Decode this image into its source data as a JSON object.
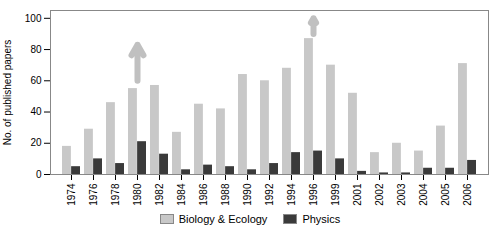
{
  "chart_data": {
    "type": "bar",
    "categories": [
      "1974",
      "1976",
      "1978",
      "1980",
      "1982",
      "1984",
      "1986",
      "1988",
      "1990",
      "1992",
      "1994",
      "1996",
      "1999",
      "2001",
      "2002",
      "2003",
      "2004",
      "2005",
      "2006"
    ],
    "series": [
      {
        "name": "Biology & Ecology",
        "color": "#C8C8C8",
        "values": [
          18,
          29,
          46,
          55,
          57,
          27,
          45,
          42,
          64,
          60,
          68,
          87,
          70,
          52,
          14,
          20,
          15,
          31,
          71
        ]
      },
      {
        "name": "Physics",
        "color": "#3A3A3A",
        "values": [
          5,
          10,
          7,
          21,
          13,
          3,
          6,
          5,
          3,
          7,
          14,
          15,
          10,
          2,
          1,
          1,
          4,
          4,
          9
        ]
      }
    ],
    "ylabel": "No. of published papers",
    "ylim": [
      0,
      105
    ],
    "yticks": [
      0,
      20,
      40,
      60,
      80,
      100
    ],
    "grid": false,
    "legend": "bottom",
    "arrows": [
      {
        "category": "1980",
        "from": 60,
        "to": 83,
        "color": "#C0C0C0"
      },
      {
        "category": "1996",
        "from": 90,
        "to": 100,
        "color": "#C0C0C0"
      }
    ]
  }
}
